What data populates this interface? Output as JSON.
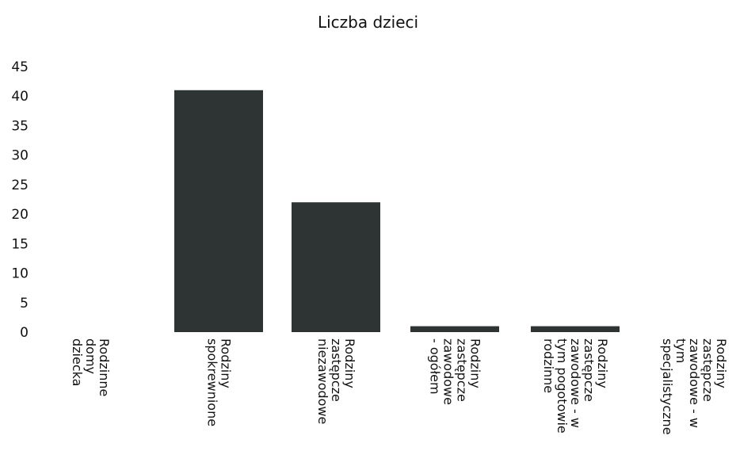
{
  "chart_data": {
    "type": "bar",
    "title": "Liczba dzieci",
    "xlabel": "",
    "ylabel": "",
    "ylim": [
      0,
      45
    ],
    "yticks": [
      0,
      5,
      10,
      15,
      20,
      25,
      30,
      35,
      40,
      45
    ],
    "grid": false,
    "legend": "none",
    "bar_color": "#2e3434",
    "categories": [
      [
        "Rodzinne",
        "domy",
        "dziecka"
      ],
      [
        "Rodziny",
        "spokrewnione"
      ],
      [
        "Rodziny",
        "zastępcze",
        "niezawodowe"
      ],
      [
        "Rodziny",
        "zastępcze",
        "zawodowe",
        "- ogółem"
      ],
      [
        "Rodziny",
        "zastępcze",
        "zawodowe - w",
        "tym pogotowie",
        "rodzinne"
      ],
      [
        "Rodziny",
        "zastępcze",
        "zawodowe - w",
        "tym",
        "specjalistyczne"
      ]
    ],
    "values": [
      0,
      41,
      22,
      1,
      1,
      0
    ]
  }
}
